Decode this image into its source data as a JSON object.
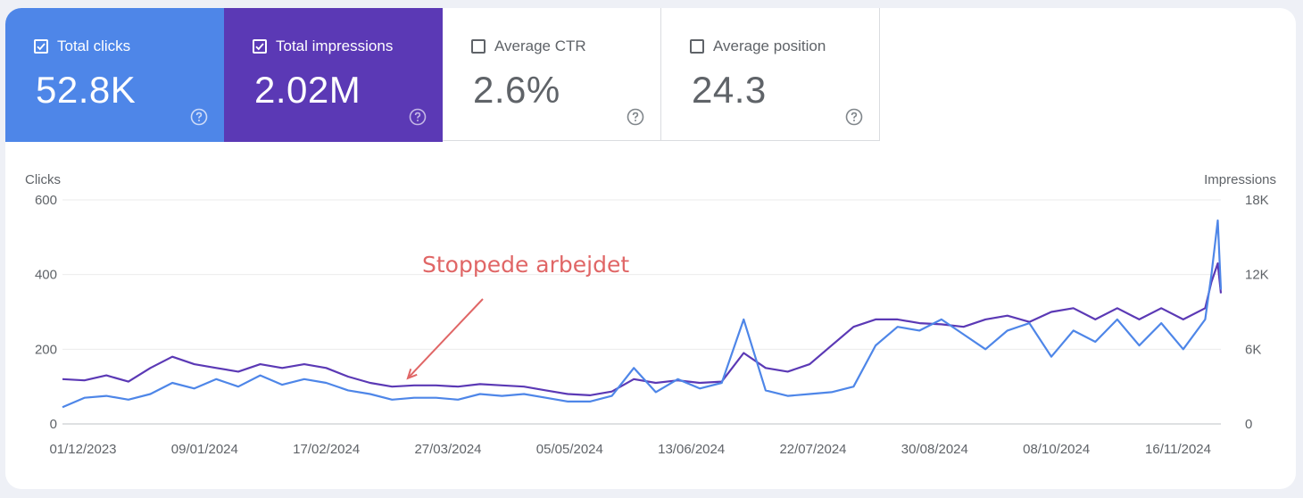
{
  "metrics": [
    {
      "label": "Total clicks",
      "value": "52.8K",
      "checked": true,
      "color": "#4e86e8"
    },
    {
      "label": "Total impressions",
      "value": "2.02M",
      "checked": true,
      "color": "#5b39b5"
    },
    {
      "label": "Average CTR",
      "value": "2.6%",
      "checked": false
    },
    {
      "label": "Average position",
      "value": "24.3",
      "checked": false
    }
  ],
  "chart_data": {
    "type": "line",
    "left_axis_label": "Clicks",
    "right_axis_label": "Impressions",
    "left_ylim": [
      0,
      600
    ],
    "right_ylim": [
      0,
      18000
    ],
    "left_ticks": [
      "0",
      "200",
      "400",
      "600"
    ],
    "right_ticks": [
      "0",
      "6K",
      "12K",
      "18K"
    ],
    "x_ticks": [
      "01/12/2023",
      "09/01/2024",
      "17/02/2024",
      "27/03/2024",
      "05/05/2024",
      "13/06/2024",
      "22/07/2024",
      "30/08/2024",
      "08/10/2024",
      "16/11/2024"
    ],
    "x_range": [
      "2023-12-01",
      "2024-12-04"
    ],
    "grid": true,
    "annotation": {
      "text": "Stoppede arbejdet",
      "points_to": "2024-03-20"
    },
    "series": [
      {
        "name": "Total clicks",
        "axis": "left",
        "color": "#4e86e8",
        "x": [
          "2023-12-01",
          "2023-12-08",
          "2023-12-15",
          "2023-12-22",
          "2023-12-29",
          "2024-01-05",
          "2024-01-12",
          "2024-01-19",
          "2024-01-26",
          "2024-02-02",
          "2024-02-09",
          "2024-02-16",
          "2024-02-23",
          "2024-03-01",
          "2024-03-08",
          "2024-03-15",
          "2024-03-22",
          "2024-03-29",
          "2024-04-05",
          "2024-04-12",
          "2024-04-19",
          "2024-04-26",
          "2024-05-03",
          "2024-05-10",
          "2024-05-17",
          "2024-05-24",
          "2024-05-31",
          "2024-06-07",
          "2024-06-14",
          "2024-06-21",
          "2024-06-28",
          "2024-07-05",
          "2024-07-12",
          "2024-07-19",
          "2024-07-26",
          "2024-08-02",
          "2024-08-09",
          "2024-08-16",
          "2024-08-23",
          "2024-08-30",
          "2024-09-06",
          "2024-09-13",
          "2024-09-20",
          "2024-09-27",
          "2024-10-04",
          "2024-10-11",
          "2024-10-18",
          "2024-10-25",
          "2024-11-01",
          "2024-11-08",
          "2024-11-15",
          "2024-11-22",
          "2024-11-29",
          "2024-12-01",
          "2024-12-03",
          "2024-12-04"
        ],
        "values": [
          45,
          70,
          75,
          65,
          80,
          110,
          95,
          120,
          100,
          130,
          105,
          120,
          110,
          90,
          80,
          65,
          70,
          70,
          65,
          80,
          75,
          80,
          70,
          60,
          60,
          75,
          150,
          85,
          120,
          95,
          110,
          280,
          90,
          75,
          80,
          85,
          100,
          210,
          260,
          250,
          280,
          240,
          200,
          250,
          270,
          180,
          250,
          220,
          280,
          210,
          270,
          200,
          280,
          400,
          545,
          360
        ]
      },
      {
        "name": "Total impressions",
        "axis": "right",
        "color": "#5b39b5",
        "x": [
          "2023-12-01",
          "2023-12-08",
          "2023-12-15",
          "2023-12-22",
          "2023-12-29",
          "2024-01-05",
          "2024-01-12",
          "2024-01-19",
          "2024-01-26",
          "2024-02-02",
          "2024-02-09",
          "2024-02-16",
          "2024-02-23",
          "2024-03-01",
          "2024-03-08",
          "2024-03-15",
          "2024-03-22",
          "2024-03-29",
          "2024-04-05",
          "2024-04-12",
          "2024-04-19",
          "2024-04-26",
          "2024-05-03",
          "2024-05-10",
          "2024-05-17",
          "2024-05-24",
          "2024-05-31",
          "2024-06-07",
          "2024-06-14",
          "2024-06-21",
          "2024-06-28",
          "2024-07-05",
          "2024-07-12",
          "2024-07-19",
          "2024-07-26",
          "2024-08-02",
          "2024-08-09",
          "2024-08-16",
          "2024-08-23",
          "2024-08-30",
          "2024-09-06",
          "2024-09-13",
          "2024-09-20",
          "2024-09-27",
          "2024-10-04",
          "2024-10-11",
          "2024-10-18",
          "2024-10-25",
          "2024-11-01",
          "2024-11-08",
          "2024-11-15",
          "2024-11-22",
          "2024-11-29",
          "2024-12-01",
          "2024-12-03",
          "2024-12-04"
        ],
        "values": [
          3600,
          3500,
          3900,
          3400,
          4500,
          5400,
          4800,
          4500,
          4200,
          4800,
          4500,
          4800,
          4500,
          3800,
          3300,
          3000,
          3100,
          3100,
          3000,
          3200,
          3100,
          3000,
          2700,
          2400,
          2300,
          2600,
          3600,
          3300,
          3500,
          3300,
          3400,
          5700,
          4500,
          4200,
          4800,
          6300,
          7800,
          8400,
          8400,
          8100,
          8000,
          7800,
          8400,
          8700,
          8200,
          9000,
          9300,
          8400,
          9300,
          8400,
          9300,
          8400,
          9300,
          11400,
          12900,
          10500
        ]
      }
    ]
  }
}
